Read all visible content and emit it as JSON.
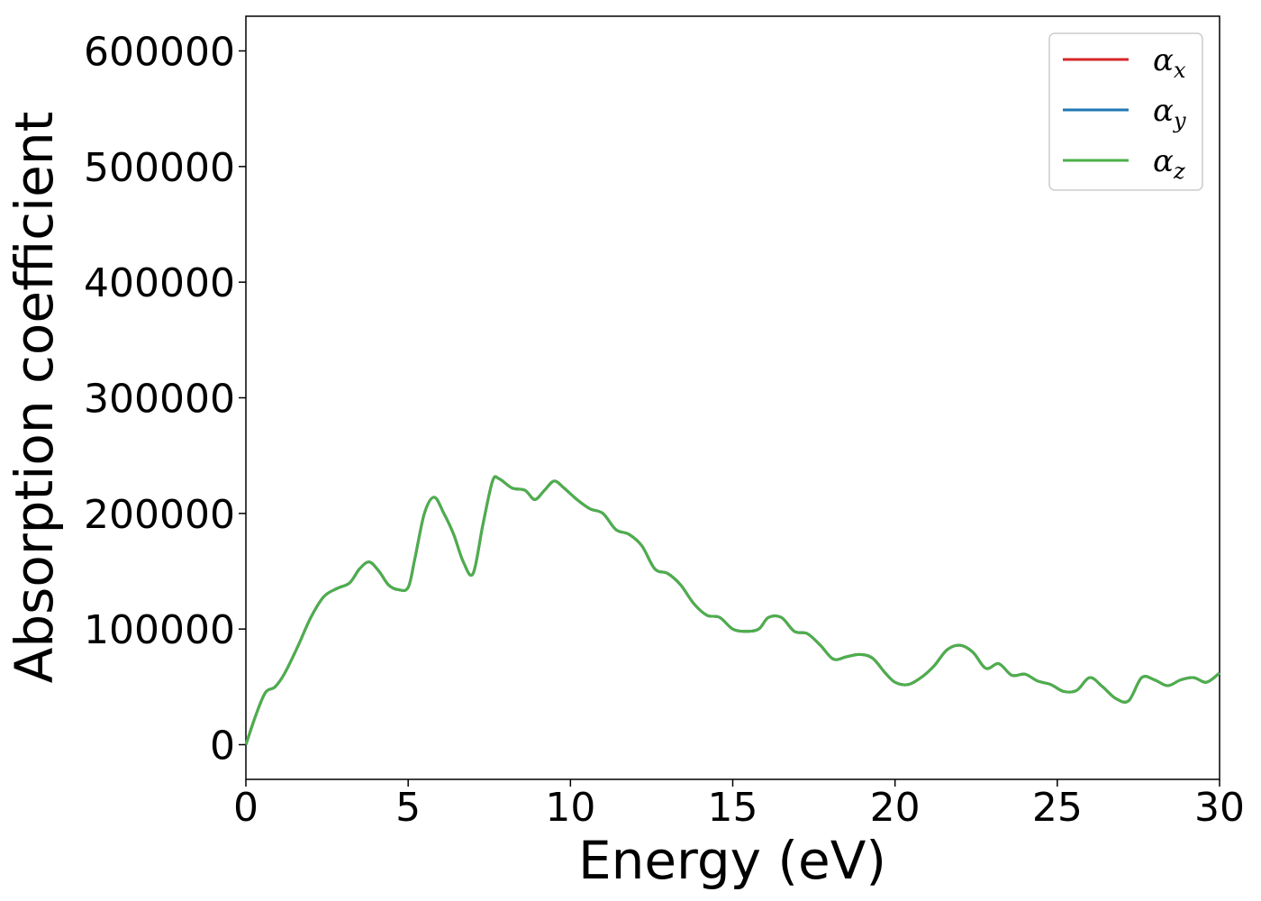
{
  "chart_data": {
    "type": "line",
    "title": "",
    "xlabel": "Energy (eV)",
    "ylabel": "Absorption coefficient",
    "xlim": [
      0,
      30
    ],
    "ylim": [
      -30000,
      630000
    ],
    "xticks": [
      0,
      5,
      10,
      15,
      20,
      25,
      30
    ],
    "yticks": [
      0,
      100000,
      200000,
      300000,
      400000,
      500000,
      600000
    ],
    "grid": false,
    "legend_position": "top-right",
    "series": [
      {
        "name": "αx",
        "symbol": "α",
        "subscript": "x",
        "color": "#d62728",
        "curve": "shared"
      },
      {
        "name": "αy",
        "symbol": "α",
        "subscript": "y",
        "color": "#1f77b4",
        "curve": "shared"
      },
      {
        "name": "αz",
        "symbol": "α",
        "subscript": "z",
        "color": "#4daf4a",
        "curve": "shared"
      }
    ],
    "shared_curve": {
      "x": [
        0,
        0.3,
        0.6,
        0.9,
        1.2,
        1.6,
        2.0,
        2.4,
        2.8,
        3.2,
        3.5,
        3.8,
        4.1,
        4.4,
        4.7,
        5.0,
        5.2,
        5.5,
        5.8,
        6.1,
        6.4,
        6.7,
        7.0,
        7.3,
        7.6,
        7.8,
        8.2,
        8.6,
        8.9,
        9.2,
        9.5,
        9.8,
        10.2,
        10.6,
        11.0,
        11.4,
        11.8,
        12.2,
        12.6,
        13.0,
        13.4,
        13.8,
        14.2,
        14.6,
        15.0,
        15.4,
        15.8,
        16.1,
        16.5,
        16.9,
        17.3,
        17.7,
        18.1,
        18.5,
        18.9,
        19.3,
        19.7,
        20.0,
        20.4,
        20.8,
        21.2,
        21.6,
        22.0,
        22.4,
        22.8,
        23.2,
        23.6,
        24.0,
        24.4,
        24.8,
        25.2,
        25.6,
        26.0,
        26.4,
        26.8,
        27.2,
        27.6,
        28.0,
        28.4,
        28.8,
        29.2,
        29.6,
        30.0
      ],
      "y": [
        0,
        25000,
        45000,
        50000,
        62000,
        85000,
        110000,
        128000,
        135000,
        140000,
        152000,
        158000,
        150000,
        138000,
        134000,
        136000,
        160000,
        200000,
        214000,
        200000,
        182000,
        158000,
        148000,
        190000,
        228000,
        230000,
        222000,
        220000,
        212000,
        220000,
        228000,
        222000,
        212000,
        204000,
        200000,
        186000,
        182000,
        172000,
        152000,
        148000,
        138000,
        122000,
        112000,
        110000,
        100000,
        98000,
        100000,
        110000,
        110000,
        98000,
        96000,
        86000,
        74000,
        76000,
        78000,
        75000,
        62000,
        54000,
        52000,
        58000,
        68000,
        82000,
        86000,
        80000,
        66000,
        70000,
        60000,
        61000,
        55000,
        52000,
        46000,
        47000,
        58000,
        50000,
        40000,
        38000,
        58000,
        56000,
        51000,
        56000,
        58000,
        54000,
        62000
      ]
    }
  }
}
